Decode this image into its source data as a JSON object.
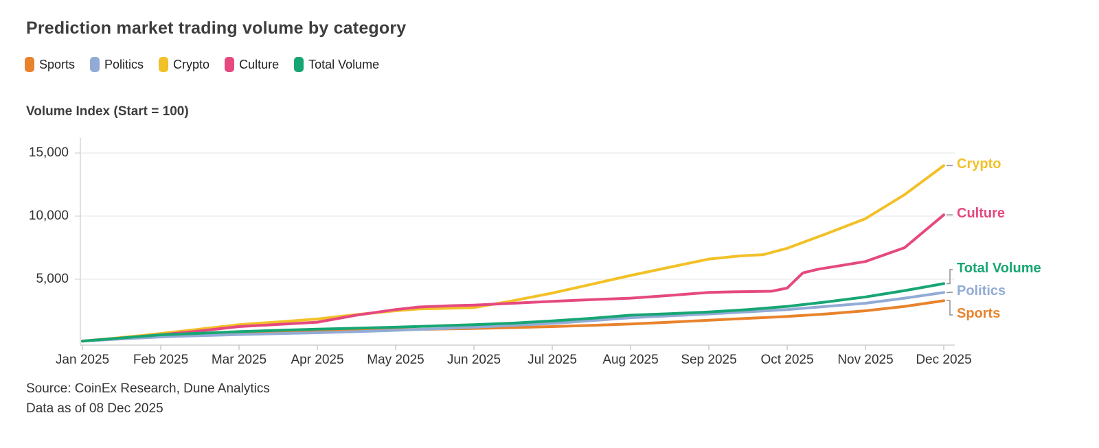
{
  "title": "Prediction market trading volume by category",
  "y_axis_title": "Volume Index (Start = 100)",
  "legend": [
    {
      "label": "Sports",
      "color": "#E8832C"
    },
    {
      "label": "Politics",
      "color": "#92ABD6"
    },
    {
      "label": "Crypto",
      "color": "#F2C128"
    },
    {
      "label": "Culture",
      "color": "#E54980"
    },
    {
      "label": "Total Volume",
      "color": "#17A673"
    }
  ],
  "footer": {
    "source": "Source: CoinEx Research, Dune Analytics",
    "as_of": "Data as of 08 Dec 2025"
  },
  "chart_data": {
    "type": "line",
    "title": "Prediction market trading volume by category",
    "xlabel": "",
    "ylabel": "Volume Index (Start = 100)",
    "grid": "horizontal",
    "legend_position": "top-left, plus colored end-of-line labels at right",
    "x_unit": "month index, 0 = Jan 2025 through 11 = Dec 2025",
    "x_tick_labels": [
      "Jan 2025",
      "Feb 2025",
      "Mar 2025",
      "Apr 2025",
      "May 2025",
      "Jun 2025",
      "Jul 2025",
      "Aug 2025",
      "Sep 2025",
      "Oct 2025",
      "Nov 2025",
      "Dec 2025"
    ],
    "y_ticks": [
      5000,
      10000,
      15000
    ],
    "y_tick_labels": [
      "5,000",
      "10,000",
      "15,000"
    ],
    "ylim": [
      0,
      16300
    ],
    "series": [
      {
        "name": "Crypto",
        "color": "#F2C128",
        "end_value": 14000,
        "points": [
          [
            0,
            100
          ],
          [
            0.33,
            280
          ],
          [
            0.66,
            480
          ],
          [
            1,
            700
          ],
          [
            1.5,
            1050
          ],
          [
            2,
            1400
          ],
          [
            2.5,
            1620
          ],
          [
            3,
            1850
          ],
          [
            3.5,
            2200
          ],
          [
            4,
            2500
          ],
          [
            4.3,
            2650
          ],
          [
            4.7,
            2700
          ],
          [
            5,
            2750
          ],
          [
            5.5,
            3300
          ],
          [
            6,
            3900
          ],
          [
            6.5,
            4600
          ],
          [
            7,
            5300
          ],
          [
            7.5,
            5950
          ],
          [
            8,
            6600
          ],
          [
            8.4,
            6850
          ],
          [
            8.7,
            6950
          ],
          [
            9,
            7450
          ],
          [
            9.5,
            8600
          ],
          [
            10,
            9800
          ],
          [
            10.5,
            11700
          ],
          [
            11,
            14000
          ]
        ]
      },
      {
        "name": "Culture",
        "color": "#E54980",
        "end_value": 10100,
        "points": [
          [
            0,
            100
          ],
          [
            0.5,
            340
          ],
          [
            1,
            600
          ],
          [
            1.5,
            900
          ],
          [
            2,
            1250
          ],
          [
            2.5,
            1420
          ],
          [
            3,
            1600
          ],
          [
            3.5,
            2150
          ],
          [
            4,
            2600
          ],
          [
            4.3,
            2800
          ],
          [
            4.7,
            2900
          ],
          [
            5,
            2950
          ],
          [
            5.5,
            3100
          ],
          [
            6,
            3250
          ],
          [
            6.5,
            3380
          ],
          [
            7,
            3500
          ],
          [
            7.5,
            3720
          ],
          [
            8,
            3950
          ],
          [
            8.3,
            4000
          ],
          [
            8.8,
            4050
          ],
          [
            9,
            4300
          ],
          [
            9.2,
            5500
          ],
          [
            9.4,
            5800
          ],
          [
            9.7,
            6100
          ],
          [
            10,
            6400
          ],
          [
            10.5,
            7500
          ],
          [
            11,
            10100
          ]
        ]
      },
      {
        "name": "Sports",
        "color": "#E8832C",
        "end_value": 3300,
        "points": [
          [
            0,
            100
          ],
          [
            0.5,
            300
          ],
          [
            1,
            520
          ],
          [
            1.5,
            670
          ],
          [
            2,
            800
          ],
          [
            2.5,
            860
          ],
          [
            3,
            920
          ],
          [
            3.5,
            960
          ],
          [
            4,
            1000
          ],
          [
            4.5,
            1050
          ],
          [
            5,
            1100
          ],
          [
            5.5,
            1170
          ],
          [
            6,
            1250
          ],
          [
            6.5,
            1350
          ],
          [
            7,
            1450
          ],
          [
            7.5,
            1600
          ],
          [
            8,
            1750
          ],
          [
            8.5,
            1900
          ],
          [
            9,
            2050
          ],
          [
            9.5,
            2250
          ],
          [
            10,
            2500
          ],
          [
            10.5,
            2850
          ],
          [
            11,
            3300
          ]
        ]
      },
      {
        "name": "Politics",
        "color": "#92ABD6",
        "end_value": 3950,
        "points": [
          [
            0,
            100
          ],
          [
            0.5,
            270
          ],
          [
            1,
            430
          ],
          [
            1.5,
            530
          ],
          [
            2,
            620
          ],
          [
            2.5,
            690
          ],
          [
            3,
            760
          ],
          [
            3.5,
            850
          ],
          [
            4,
            950
          ],
          [
            4.5,
            1070
          ],
          [
            5,
            1200
          ],
          [
            5.5,
            1350
          ],
          [
            6,
            1500
          ],
          [
            6.5,
            1720
          ],
          [
            7,
            1950
          ],
          [
            7.5,
            2100
          ],
          [
            8,
            2250
          ],
          [
            8.5,
            2420
          ],
          [
            9,
            2600
          ],
          [
            9.5,
            2850
          ],
          [
            10,
            3100
          ],
          [
            10.5,
            3500
          ],
          [
            11,
            3950
          ]
        ]
      },
      {
        "name": "Total Volume",
        "color": "#17A673",
        "end_value": 4650,
        "points": [
          [
            0,
            100
          ],
          [
            0.5,
            350
          ],
          [
            1,
            600
          ],
          [
            1.5,
            720
          ],
          [
            2,
            850
          ],
          [
            2.5,
            950
          ],
          [
            3,
            1050
          ],
          [
            3.5,
            1120
          ],
          [
            4,
            1200
          ],
          [
            4.5,
            1300
          ],
          [
            5,
            1400
          ],
          [
            5.5,
            1520
          ],
          [
            6,
            1700
          ],
          [
            6.5,
            1900
          ],
          [
            7,
            2150
          ],
          [
            7.5,
            2270
          ],
          [
            8,
            2400
          ],
          [
            8.5,
            2600
          ],
          [
            9,
            2850
          ],
          [
            9.5,
            3200
          ],
          [
            10,
            3600
          ],
          [
            10.5,
            4100
          ],
          [
            11,
            4650
          ]
        ]
      }
    ]
  }
}
